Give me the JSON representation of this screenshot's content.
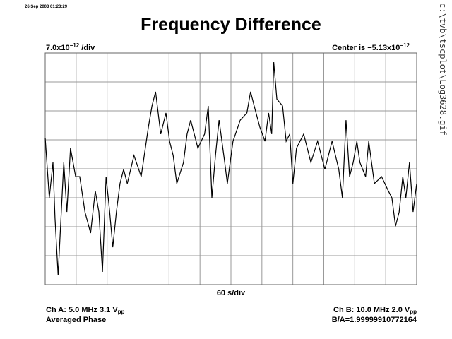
{
  "chart_data": {
    "type": "line",
    "timestamp": "26 Sep 2003 01:23:29",
    "title": "Frequency Difference",
    "scale": {
      "mantissa": "7.0x10",
      "exponent": "−12",
      "unit": " /div"
    },
    "center": {
      "mantissa": "Center is −5.13x10",
      "exponent": "−12"
    },
    "x_label": "60 s/div",
    "channel_a": {
      "text": "Ch A: 5.0 MHz 3.1 V",
      "sub": "pp"
    },
    "channel_b": {
      "text": "Ch B: 10.0 MHz 2.0 V",
      "sub": "pp"
    },
    "mode": "Averaged Phase",
    "ratio": "B/A=1.99999910772164",
    "file": "c:\\tvb\\tscplot\\Log3628.gif",
    "color": "#000000",
    "grid": true,
    "x": [
      0,
      8,
      15,
      19,
      25,
      36,
      42,
      49,
      59,
      67,
      77,
      88,
      97,
      104,
      111,
      118,
      125,
      131,
      138,
      145,
      152,
      159,
      172,
      186,
      200,
      207,
      214,
      224,
      234,
      241,
      248,
      255,
      268,
      275,
      282,
      296,
      309,
      316,
      323,
      330,
      337,
      348,
      353,
      364,
      378,
      391,
      398,
      405,
      416,
      426,
      433,
      439,
      443,
      449,
      460,
      467,
      474,
      480,
      487,
      501,
      515,
      528,
      542,
      556,
      569,
      576,
      583,
      590,
      597,
      604,
      610,
      621,
      627,
      638,
      652,
      665,
      672,
      679,
      686,
      693,
      699,
      706,
      713,
      720
    ],
    "values": [
      1.07,
      -1.0,
      0.22,
      -1.71,
      -3.68,
      0.22,
      -1.49,
      0.71,
      -0.27,
      -0.27,
      -1.49,
      -2.22,
      -0.76,
      -1.49,
      -3.56,
      -0.27,
      -1.49,
      -2.71,
      -1.49,
      -0.51,
      -0.02,
      -0.51,
      0.46,
      -0.27,
      1.44,
      2.17,
      2.66,
      1.2,
      1.93,
      0.95,
      0.46,
      -0.51,
      0.22,
      1.2,
      1.68,
      0.71,
      1.2,
      2.17,
      -1.0,
      0.46,
      1.68,
      0.22,
      -0.51,
      0.95,
      1.68,
      1.93,
      2.66,
      2.17,
      1.44,
      0.95,
      1.93,
      1.2,
      3.68,
      2.41,
      2.17,
      0.95,
      1.2,
      -0.51,
      0.71,
      1.2,
      0.22,
      0.95,
      -0.02,
      0.95,
      -0.02,
      -1.0,
      1.68,
      -0.27,
      0.22,
      0.95,
      0.22,
      -0.27,
      0.95,
      -0.51,
      -0.27,
      -0.76,
      -1.0,
      -1.98,
      -1.49,
      -0.27,
      -1.0,
      0.22,
      -1.49,
      -0.51
    ],
    "xlim": [
      0,
      720
    ],
    "xticks": [
      0,
      60,
      120,
      180,
      240,
      300,
      360,
      420,
      480,
      540,
      600,
      660,
      720
    ],
    "ylim": [
      -4,
      4
    ],
    "yticks": [
      -4,
      -3,
      -2,
      -1,
      0,
      1,
      2,
      3,
      4
    ]
  }
}
